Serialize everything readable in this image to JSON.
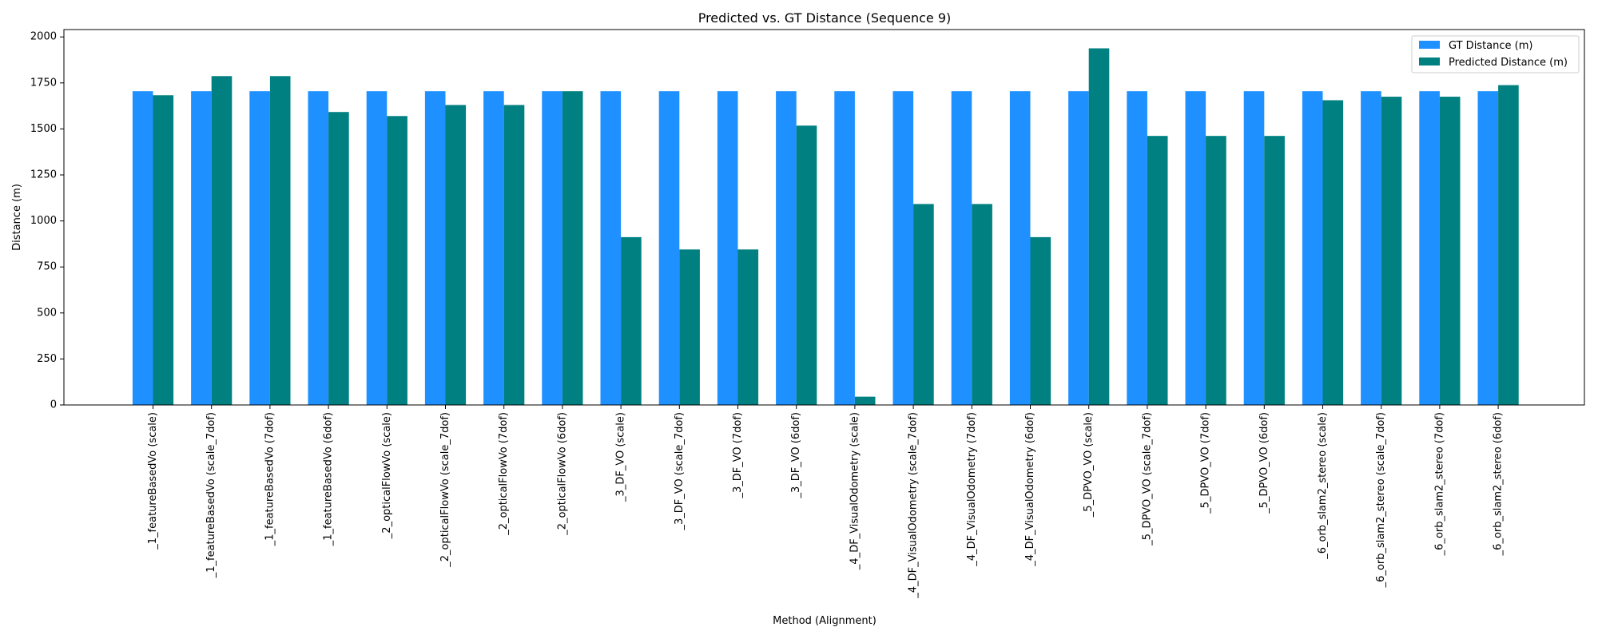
{
  "chart_data": {
    "type": "bar",
    "title": "Predicted vs. GT Distance (Sequence 9)",
    "xlabel": "Method (Alignment)",
    "ylabel": "Distance (m)",
    "ylim": [
      0,
      2040
    ],
    "yticks": [
      0,
      250,
      500,
      750,
      1000,
      1250,
      1500,
      1750,
      2000
    ],
    "grid": false,
    "legend_position": "top-right",
    "categories": [
      "_1_featureBasedVo (scale)",
      "_1_featureBasedVo (scale_7dof)",
      "_1_featureBasedVo (7dof)",
      "_1_featureBasedVo (6dof)",
      "_2_opticalFlowVo (scale)",
      "_2_opticalFlowVo (scale_7dof)",
      "_2_opticalFlowVo (7dof)",
      "_2_opticalFlowVo (6dof)",
      "_3_DF_VO (scale)",
      "_3_DF_VO (scale_7dof)",
      "_3_DF_VO (7dof)",
      "_3_DF_VO (6dof)",
      "_4_DF_VisualOdometry (scale)",
      "_4_DF_VisualOdometry (scale_7dof)",
      "_4_DF_VisualOdometry (7dof)",
      "_4_DF_VisualOdometry (6dof)",
      "_5_DPVO_VO (scale)",
      "_5_DPVO_VO (scale_7dof)",
      "_5_DPVO_VO (7dof)",
      "_5_DPVO_VO (6dof)",
      "_6_orb_slam2_stereo (scale)",
      "_6_orb_slam2_stereo (scale_7dof)",
      "_6_orb_slam2_stereo (7dof)",
      "_6_orb_slam2_stereo (6dof)"
    ],
    "series": [
      {
        "name": "GT Distance (m)",
        "color": "#1e90ff",
        "values": [
          1705,
          1705,
          1705,
          1705,
          1705,
          1705,
          1705,
          1705,
          1705,
          1705,
          1705,
          1705,
          1705,
          1705,
          1705,
          1705,
          1705,
          1705,
          1705,
          1705,
          1705,
          1705,
          1705,
          1705
        ]
      },
      {
        "name": "Predicted Distance (m)",
        "color": "#008080",
        "values": [
          1683,
          1787,
          1787,
          1592,
          1570,
          1630,
          1630,
          1705,
          912,
          845,
          845,
          1518,
          45,
          1092,
          1092,
          912,
          1938,
          1462,
          1462,
          1462,
          1656,
          1675,
          1675,
          1738
        ]
      }
    ]
  }
}
